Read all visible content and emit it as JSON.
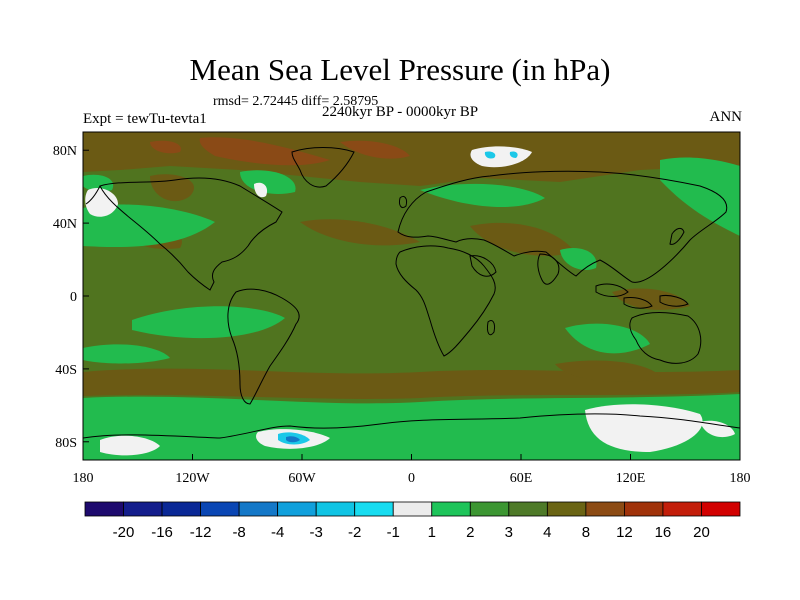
{
  "map": {
    "title": "Mean Sea Level Pressure (in hPa)",
    "stats": "rmsd= 2.72445 diff= 2.58795",
    "experiment": "Expt = tewTu-tevta1",
    "period": "2240kyr BP - 0000kyr BP",
    "season": "ANN",
    "lat_labels": [
      "80N",
      "40N",
      "0",
      "40S",
      "80S"
    ],
    "lat_values": [
      80,
      40,
      0,
      -40,
      -80
    ],
    "lon_labels": [
      "180",
      "120W",
      "60W",
      "0",
      "60E",
      "120E",
      "180"
    ],
    "lon_values": [
      -180,
      -120,
      -60,
      0,
      60,
      120,
      180
    ]
  },
  "colorbar": {
    "labels": [
      "-20",
      "-16",
      "-12",
      "-8",
      "-4",
      "-3",
      "-2",
      "-1",
      "1",
      "2",
      "3",
      "4",
      "8",
      "12",
      "16",
      "20"
    ],
    "colors": [
      "#1e0a6e",
      "#141e8c",
      "#0a2896",
      "#0a46b4",
      "#1478c8",
      "#10a0dc",
      "#10c4e4",
      "#18dcf0",
      "#ececec",
      "#1ec45a",
      "#3c9632",
      "#4e7a28",
      "#6a6414",
      "#8c4b14",
      "#a0320a",
      "#c31e0a",
      "#d20000"
    ]
  },
  "field_colors": {
    "base": "#50741f",
    "green": "#22bb4e",
    "light_green": "#3ca031",
    "brown": "#6b5a14",
    "dark_brown": "#8a4a16",
    "white": "#f2f2f2",
    "cyan": "#1cc8e8",
    "blue": "#1478c8",
    "coast": "#000000"
  }
}
